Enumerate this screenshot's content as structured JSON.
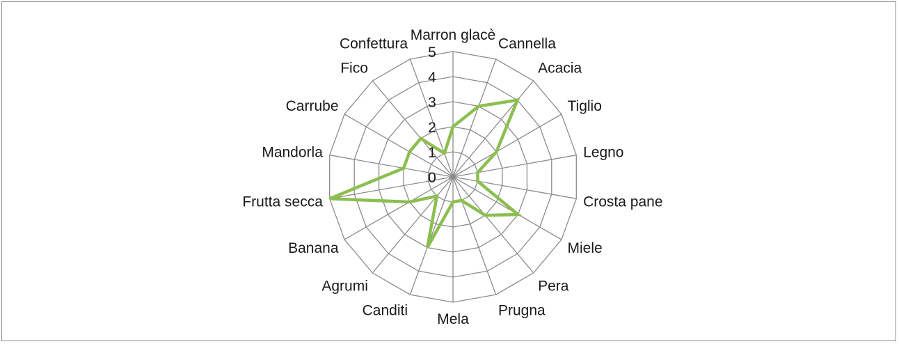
{
  "chart_data": {
    "type": "radar",
    "categories": [
      "Marron glacè",
      "Cannella",
      "Acacia",
      "Tiglio",
      "Legno",
      "Crosta pane",
      "Miele",
      "Pera",
      "Prugna",
      "Mela",
      "Canditi",
      "Agrumi",
      "Banana",
      "Frutta secca",
      "Mandorla",
      "Carrube",
      "Fico",
      "Confettura"
    ],
    "ticks": [
      "0",
      "1",
      "2",
      "3",
      "4",
      "5"
    ],
    "rlim": [
      0,
      5
    ],
    "series": [
      {
        "values": [
          2,
          3,
          4,
          2,
          1,
          1,
          3,
          2,
          1,
          1,
          3,
          1,
          2,
          5,
          2,
          2,
          2,
          1
        ],
        "color": "#8cbe50"
      }
    ],
    "grid": true,
    "grid_color": "#8c8c8c",
    "legend": "none"
  }
}
